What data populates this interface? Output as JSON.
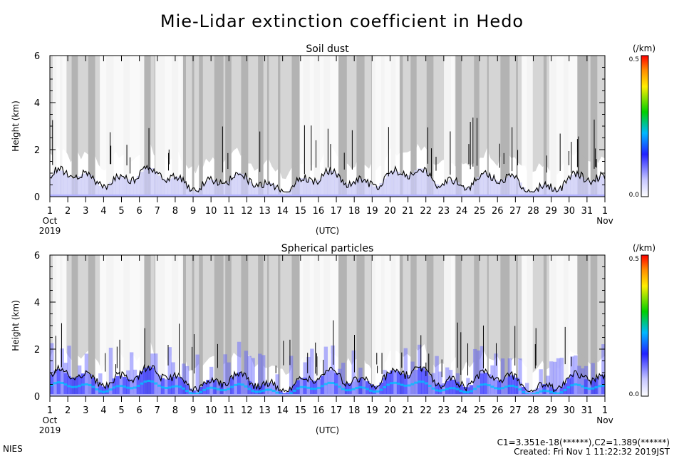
{
  "title": "Mie-Lidar extinction coefficient in Hedo",
  "chart_data": [
    {
      "type": "heatmap",
      "title": "Soil dust",
      "xlabel": "(UTC)",
      "ylabel": "Height (km)",
      "ylim": [
        0,
        6
      ],
      "yticks": [
        "0",
        "2",
        "4",
        "6"
      ],
      "x_tick_labels": [
        "1",
        "2",
        "3",
        "4",
        "5",
        "6",
        "7",
        "8",
        "9",
        "10",
        "11",
        "12",
        "13",
        "14",
        "15",
        "16",
        "17",
        "18",
        "19",
        "20",
        "21",
        "22",
        "23",
        "24",
        "25",
        "26",
        "27",
        "28",
        "29",
        "30",
        "31",
        "1"
      ],
      "x_start_month": "Oct",
      "x_start_year": "2019",
      "x_end_month": "Nov",
      "colorbar": {
        "unit": "(/km)",
        "min": "0.0",
        "max": "0.5"
      },
      "no_data_color": "#b3b3b3"
    },
    {
      "type": "heatmap",
      "title": "Spherical particles",
      "xlabel": "(UTC)",
      "ylabel": "Height (km)",
      "ylim": [
        0,
        6
      ],
      "yticks": [
        "0",
        "2",
        "4",
        "6"
      ],
      "x_tick_labels": [
        "1",
        "2",
        "3",
        "4",
        "5",
        "6",
        "7",
        "8",
        "9",
        "10",
        "11",
        "12",
        "13",
        "14",
        "15",
        "16",
        "17",
        "18",
        "19",
        "20",
        "21",
        "22",
        "23",
        "24",
        "25",
        "26",
        "27",
        "28",
        "29",
        "30",
        "31",
        "1"
      ],
      "x_start_month": "Oct",
      "x_start_year": "2019",
      "x_end_month": "Nov",
      "colorbar": {
        "unit": "(/km)",
        "min": "0.0",
        "max": "0.5"
      },
      "no_data_color": "#b3b3b3"
    }
  ],
  "footer": {
    "left": "NIES",
    "constants": "C1=3.351e-18(******),C2=1.389(******)",
    "created": "Created: Fri Nov  1 11:22:32 2019JST"
  }
}
